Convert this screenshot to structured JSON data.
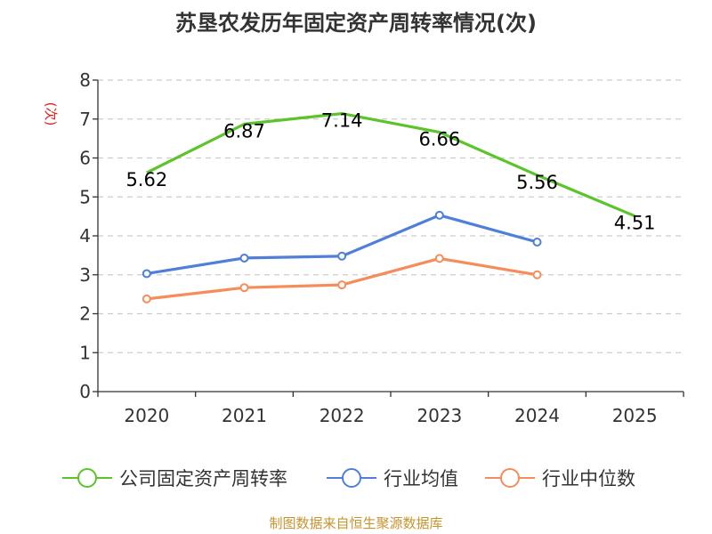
{
  "title": "苏垦农发历年固定资产周转率情况(次)",
  "source": "制图数据来自恒生聚源数据库",
  "chart_data": {
    "type": "line",
    "title": "苏垦农发历年固定资产周转率情况(次)",
    "ylabel": "(次)",
    "xlabel": "",
    "ylim": [
      0,
      8
    ],
    "yticks": [
      0,
      1,
      2,
      3,
      4,
      5,
      6,
      7,
      8
    ],
    "grid": true,
    "legend_position": "bottom",
    "categories": [
      "2020",
      "2021",
      "2022",
      "2023",
      "2024",
      "2025"
    ],
    "series": [
      {
        "name": "公司固定资产周转率",
        "color": "#5bc42a",
        "values": [
          5.62,
          6.87,
          7.14,
          6.66,
          5.56,
          4.51
        ],
        "labels": [
          "5.62",
          "6.87",
          "7.14",
          "6.66",
          "5.56",
          "4.51"
        ]
      },
      {
        "name": "行业均值",
        "color": "#4f7fd8",
        "values": [
          3.03,
          3.43,
          3.48,
          4.53,
          3.84,
          null
        ]
      },
      {
        "name": "行业中位数",
        "color": "#f58d5a",
        "values": [
          2.38,
          2.67,
          2.74,
          3.42,
          3.0,
          null
        ]
      }
    ]
  }
}
